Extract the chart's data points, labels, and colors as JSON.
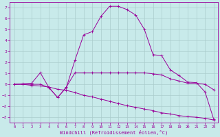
{
  "xlabel": "Windchill (Refroidissement éolien,°C)",
  "background_color": "#c8eaea",
  "line_color": "#990099",
  "grid_color": "#aacccc",
  "x_ticks": [
    0,
    1,
    2,
    3,
    4,
    5,
    6,
    7,
    8,
    9,
    10,
    11,
    12,
    13,
    14,
    15,
    16,
    17,
    18,
    19,
    20,
    21,
    22,
    23
  ],
  "y_ticks": [
    -3,
    -2,
    -1,
    0,
    1,
    2,
    3,
    4,
    5,
    6,
    7
  ],
  "ylim": [
    -3.5,
    7.5
  ],
  "xlim": [
    -0.5,
    23.5
  ],
  "line1_x": [
    0,
    1,
    2,
    3,
    4,
    5,
    6,
    7,
    8,
    9,
    10,
    11,
    12,
    13,
    14,
    15,
    16,
    17,
    18,
    19,
    20,
    21,
    22,
    23
  ],
  "line1_y": [
    0,
    0,
    0,
    0,
    -0.3,
    -1.2,
    -0.3,
    2.2,
    4.5,
    4.8,
    6.2,
    7.1,
    7.1,
    6.8,
    6.3,
    5.0,
    2.7,
    2.6,
    1.3,
    0.8,
    0.2,
    0.15,
    -0.7,
    -3.2
  ],
  "line2_x": [
    0,
    1,
    2,
    3,
    4,
    5,
    6,
    7,
    8,
    9,
    10,
    11,
    12,
    13,
    14,
    15,
    16,
    17,
    18,
    19,
    20,
    21,
    22,
    23
  ],
  "line2_y": [
    0,
    0.05,
    0.1,
    1.05,
    -0.3,
    -1.2,
    -0.25,
    1.05,
    1.05,
    1.05,
    1.05,
    1.05,
    1.05,
    1.05,
    1.05,
    1.05,
    0.95,
    0.85,
    0.5,
    0.3,
    0.1,
    0.1,
    0.0,
    -0.5
  ],
  "line3_x": [
    0,
    1,
    2,
    3,
    4,
    5,
    6,
    7,
    8,
    9,
    10,
    11,
    12,
    13,
    14,
    15,
    16,
    17,
    18,
    19,
    20,
    21,
    22,
    23
  ],
  "line3_y": [
    0,
    0,
    -0.1,
    -0.15,
    -0.25,
    -0.45,
    -0.55,
    -0.75,
    -1.0,
    -1.15,
    -1.35,
    -1.55,
    -1.75,
    -1.95,
    -2.1,
    -2.25,
    -2.4,
    -2.6,
    -2.7,
    -2.85,
    -2.95,
    -3.0,
    -3.1,
    -3.25
  ]
}
